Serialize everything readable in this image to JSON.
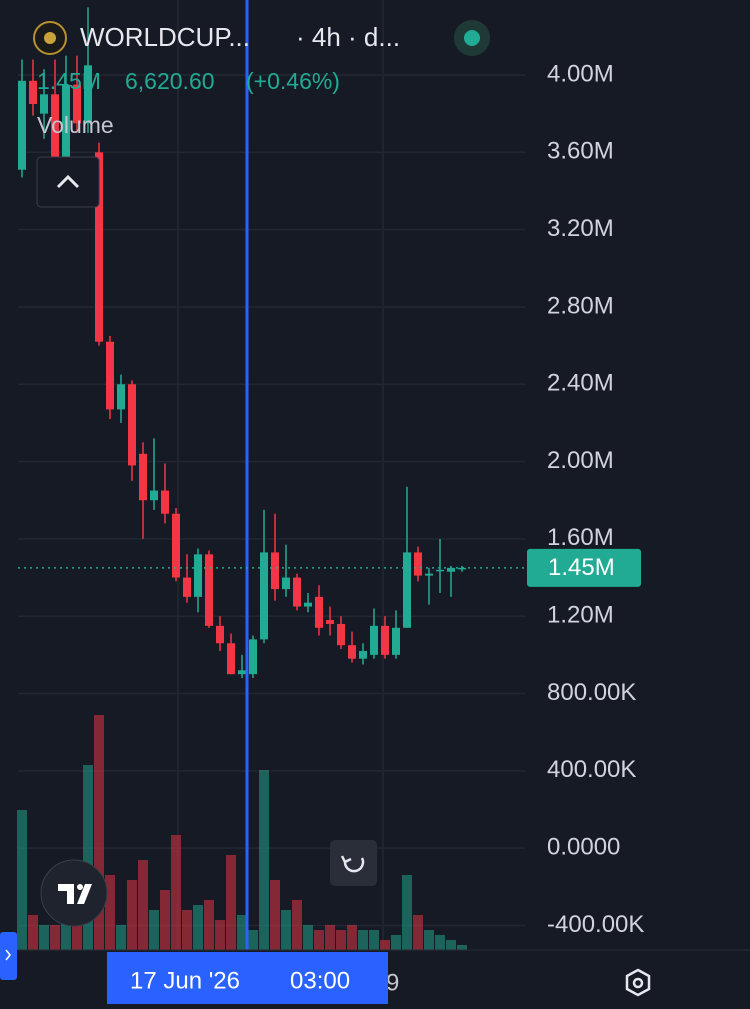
{
  "chart_data": {
    "type": "candlestick",
    "symbol": "WORLDCUP...",
    "interval": "· 4h · d...",
    "legend_close": "1.45M",
    "legend_change": "6,620.60",
    "legend_change_pct": "(+0.46%)",
    "volume_label": "Volume",
    "crosshair_date": "17 Jun '26",
    "crosshair_time": "03:00",
    "next_date_fragment": "9",
    "last_price": {
      "value": 1450000,
      "label": "1.45M"
    },
    "up_color": "#22ab94",
    "down_color": "#f23645",
    "grid": true,
    "ylim": [
      -527000,
      4388000
    ],
    "yticks": [
      {
        "value": 4000000,
        "label": "4.00M"
      },
      {
        "value": 3600000,
        "label": "3.60M"
      },
      {
        "value": 3200000,
        "label": "3.20M"
      },
      {
        "value": 2800000,
        "label": "2.80M"
      },
      {
        "value": 2400000,
        "label": "2.40M"
      },
      {
        "value": 2000000,
        "label": "2.00M"
      },
      {
        "value": 1600000,
        "label": "1.60M"
      },
      {
        "value": 1200000,
        "label": "1.20M"
      },
      {
        "value": 800000,
        "label": "800.00K"
      },
      {
        "value": 400000,
        "label": "400.00K"
      },
      {
        "value": 0,
        "label": "0.0000"
      },
      {
        "value": -400000,
        "label": "-400.00K"
      }
    ],
    "open": [
      3510000,
      3970000,
      3800000,
      3900000,
      3560000,
      3950000,
      3750000,
      3600000,
      2620000,
      2270000,
      2400000,
      2040000,
      1800000,
      1850000,
      1730000,
      1400000,
      1300000,
      1520000,
      1150000,
      1060000,
      900000,
      900000,
      1080000,
      1530000,
      1340000,
      1400000,
      1250000,
      1300000,
      1180000,
      1160000,
      1050000,
      980000,
      1000000,
      1150000,
      1000000,
      1140000,
      1530000,
      1410000,
      1440000,
      1430000,
      1450000
    ],
    "high": [
      4080000,
      4080000,
      4030000,
      4080000,
      4100000,
      4100000,
      4350000,
      3650000,
      2650000,
      2450000,
      2420000,
      2100000,
      2120000,
      1990000,
      1760000,
      1520000,
      1550000,
      1540000,
      1200000,
      1110000,
      1000000,
      1100000,
      1750000,
      1730000,
      1570000,
      1420000,
      1320000,
      1360000,
      1250000,
      1200000,
      1120000,
      1060000,
      1240000,
      1200000,
      1230000,
      1870000,
      1560000,
      1450000,
      1600000,
      1460000,
      1460000
    ],
    "low": [
      3470000,
      3790000,
      3670000,
      3480000,
      3500000,
      3700000,
      3700000,
      2600000,
      2220000,
      2200000,
      1900000,
      1600000,
      1750000,
      1680000,
      1380000,
      1270000,
      1220000,
      1140000,
      1020000,
      900000,
      880000,
      880000,
      1060000,
      1280000,
      1300000,
      1230000,
      1220000,
      1100000,
      1100000,
      1030000,
      960000,
      950000,
      980000,
      980000,
      980000,
      1140000,
      1380000,
      1260000,
      1320000,
      1300000,
      1430000
    ],
    "close": [
      3970000,
      3850000,
      3900000,
      3560000,
      3950000,
      3750000,
      4050000,
      2620000,
      2270000,
      2400000,
      1980000,
      1800000,
      1850000,
      1730000,
      1400000,
      1300000,
      1520000,
      1150000,
      1060000,
      900000,
      920000,
      1080000,
      1530000,
      1340000,
      1400000,
      1250000,
      1270000,
      1140000,
      1160000,
      1050000,
      980000,
      1020000,
      1150000,
      1000000,
      1140000,
      1530000,
      1410000,
      1420000,
      1440000,
      1450000,
      1450000
    ],
    "volume": [
      140,
      35,
      25,
      25,
      30,
      35,
      185,
      235,
      75,
      25,
      70,
      90,
      40,
      60,
      115,
      40,
      45,
      50,
      30,
      95,
      35,
      20,
      180,
      70,
      40,
      50,
      25,
      20,
      25,
      20,
      25,
      20,
      20,
      10,
      15,
      75,
      35,
      20,
      15,
      10,
      5
    ],
    "volume_ylim": [
      0,
      250
    ]
  }
}
